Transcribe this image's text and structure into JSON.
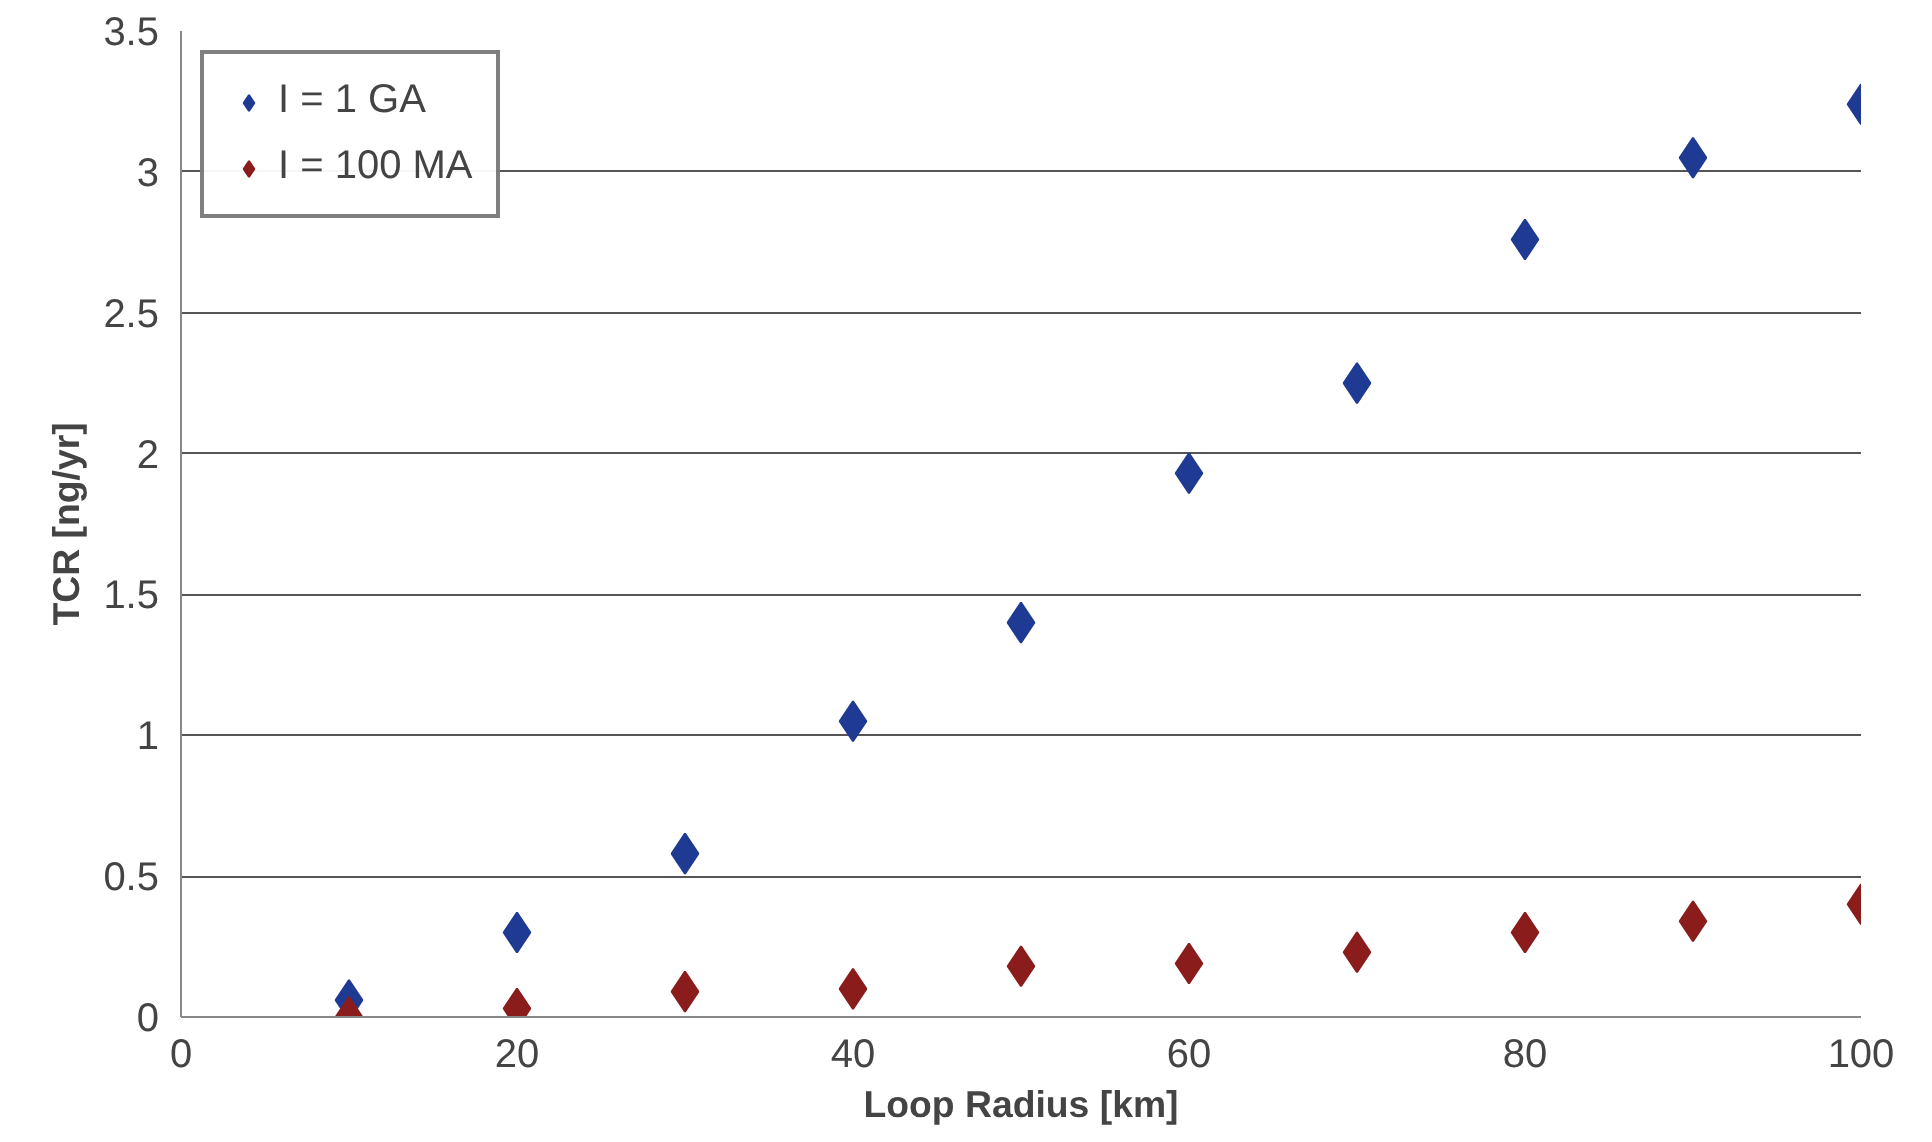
{
  "chart_data": {
    "type": "scatter",
    "xlabel": "Loop Radius [km]",
    "ylabel": "TCR [ng/yr]",
    "x": [
      10,
      20,
      30,
      40,
      50,
      60,
      70,
      80,
      90,
      100
    ],
    "series": [
      {
        "name": "I = 1 GA",
        "color": "#1f3a93",
        "values": [
          0.06,
          0.3,
          0.58,
          1.05,
          1.4,
          1.93,
          2.25,
          2.76,
          3.05,
          3.24
        ]
      },
      {
        "name": "I = 100 MA",
        "color": "#8b1c1c",
        "values": [
          0.0,
          0.03,
          0.09,
          0.1,
          0.18,
          0.19,
          0.23,
          0.3,
          0.34,
          0.4
        ]
      }
    ],
    "xlim": [
      0,
      100
    ],
    "ylim": [
      0,
      3.5
    ],
    "xticks": [
      0,
      20,
      40,
      60,
      80,
      100
    ],
    "yticks": [
      0,
      0.5,
      1,
      1.5,
      2,
      2.5,
      3,
      3.5
    ],
    "grid": "y",
    "legend": "top left",
    "marker": "diamond"
  }
}
